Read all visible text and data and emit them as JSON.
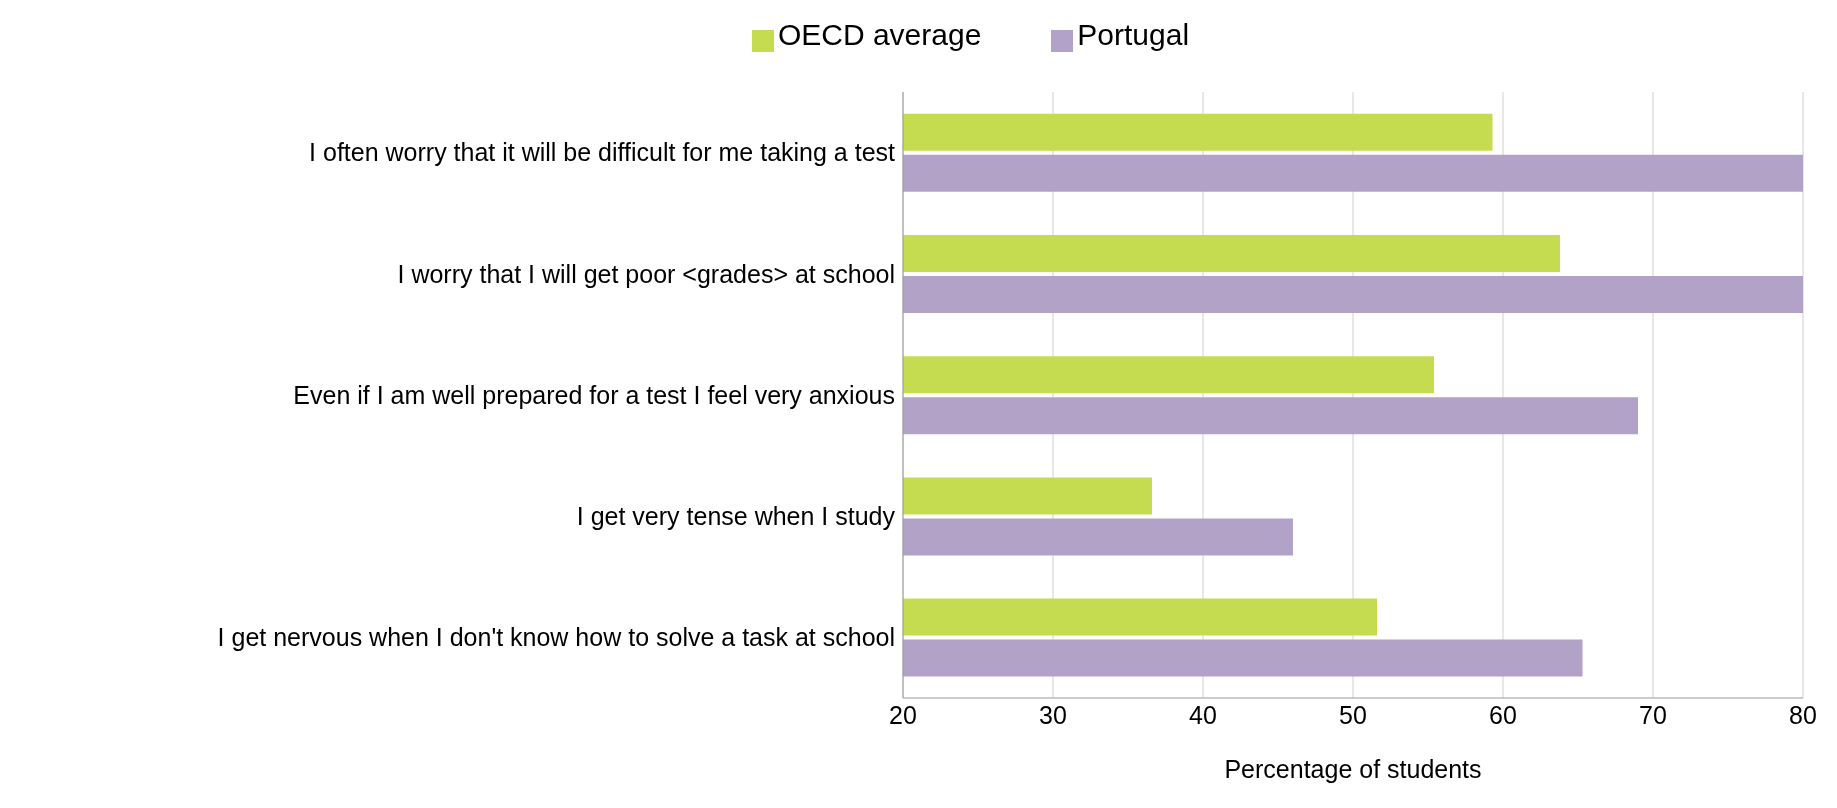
{
  "chart_data": {
    "type": "bar",
    "orientation": "horizontal",
    "xlabel": "Percentage of students",
    "categories": [
      "I often worry that it will be difficult for me taking a test",
      "I worry that I will get poor <grades> at school",
      "Even if I am well prepared for a test I feel very anxious",
      "I get very tense when I study",
      "I get nervous when I don't know how to solve a task at school"
    ],
    "series": [
      {
        "name": "OECD average",
        "color": "#c5dc50",
        "values": [
          59.3,
          63.8,
          55.4,
          36.6,
          51.6
        ]
      },
      {
        "name": "Portugal",
        "color": "#b3a2c8",
        "values": [
          80,
          80,
          69.0,
          46.0,
          65.3
        ]
      }
    ],
    "xlim": [
      20,
      80
    ],
    "xticks": [
      20,
      30,
      40,
      50,
      60,
      70,
      80
    ],
    "grid": "x",
    "legend": "top"
  }
}
